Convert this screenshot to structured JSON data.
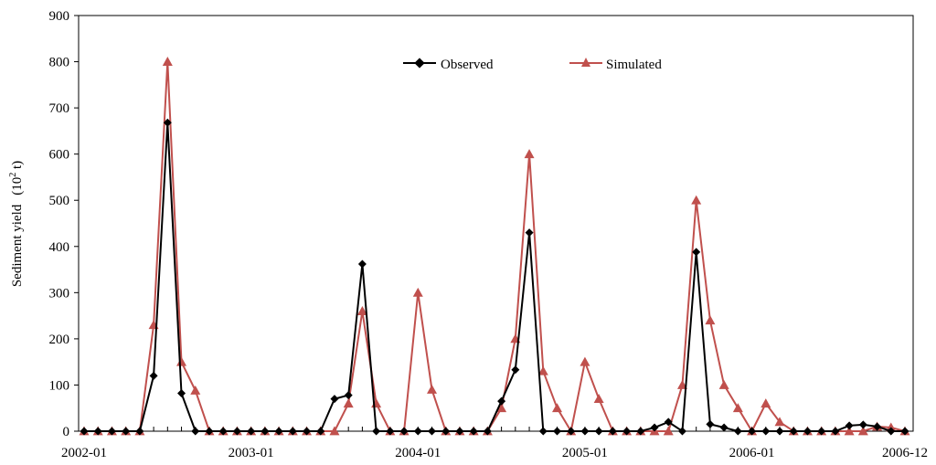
{
  "chart_data": {
    "type": "line",
    "title": "",
    "xlabel": "",
    "ylabel": "Sediment yield",
    "ylabel_unit": "(10",
    "ylabel_unit_sup": "2",
    "ylabel_unit_end": " t)",
    "ylim": [
      0,
      900
    ],
    "yticks": [
      "0",
      "100",
      "200",
      "300",
      "400",
      "500",
      "600",
      "700",
      "800",
      "900"
    ],
    "xtick_labels": [
      {
        "label": "2002-01",
        "index": 0
      },
      {
        "label": "2003-01",
        "index": 12
      },
      {
        "label": "2004-01",
        "index": 24
      },
      {
        "label": "2005-01",
        "index": 36
      },
      {
        "label": "2006-01",
        "index": 48
      },
      {
        "label": "2006-12",
        "index": 59
      }
    ],
    "n_points": 60,
    "legend_position": "top-center",
    "series": [
      {
        "name": "Observed",
        "color": "#000000",
        "marker": "diamond",
        "values": [
          0,
          0,
          0,
          0,
          0,
          120,
          668,
          82,
          0,
          0,
          0,
          0,
          0,
          0,
          0,
          0,
          0,
          0,
          70,
          78,
          362,
          0,
          0,
          0,
          0,
          0,
          0,
          0,
          0,
          0,
          65,
          133,
          430,
          0,
          0,
          0,
          0,
          0,
          0,
          0,
          0,
          8,
          20,
          0,
          388,
          15,
          8,
          0,
          0,
          0,
          0,
          0,
          0,
          0,
          0,
          12,
          14,
          10,
          0,
          0
        ]
      },
      {
        "name": "Simulated",
        "color": "#C0504D",
        "marker": "triangle",
        "values": [
          0,
          0,
          0,
          0,
          0,
          230,
          800,
          150,
          88,
          0,
          0,
          0,
          0,
          0,
          0,
          0,
          0,
          0,
          0,
          60,
          260,
          60,
          0,
          0,
          300,
          90,
          0,
          0,
          0,
          0,
          50,
          200,
          600,
          130,
          50,
          0,
          150,
          70,
          0,
          0,
          0,
          0,
          0,
          100,
          500,
          240,
          100,
          50,
          0,
          60,
          20,
          0,
          0,
          0,
          0,
          0,
          0,
          10,
          8,
          0
        ]
      }
    ]
  }
}
